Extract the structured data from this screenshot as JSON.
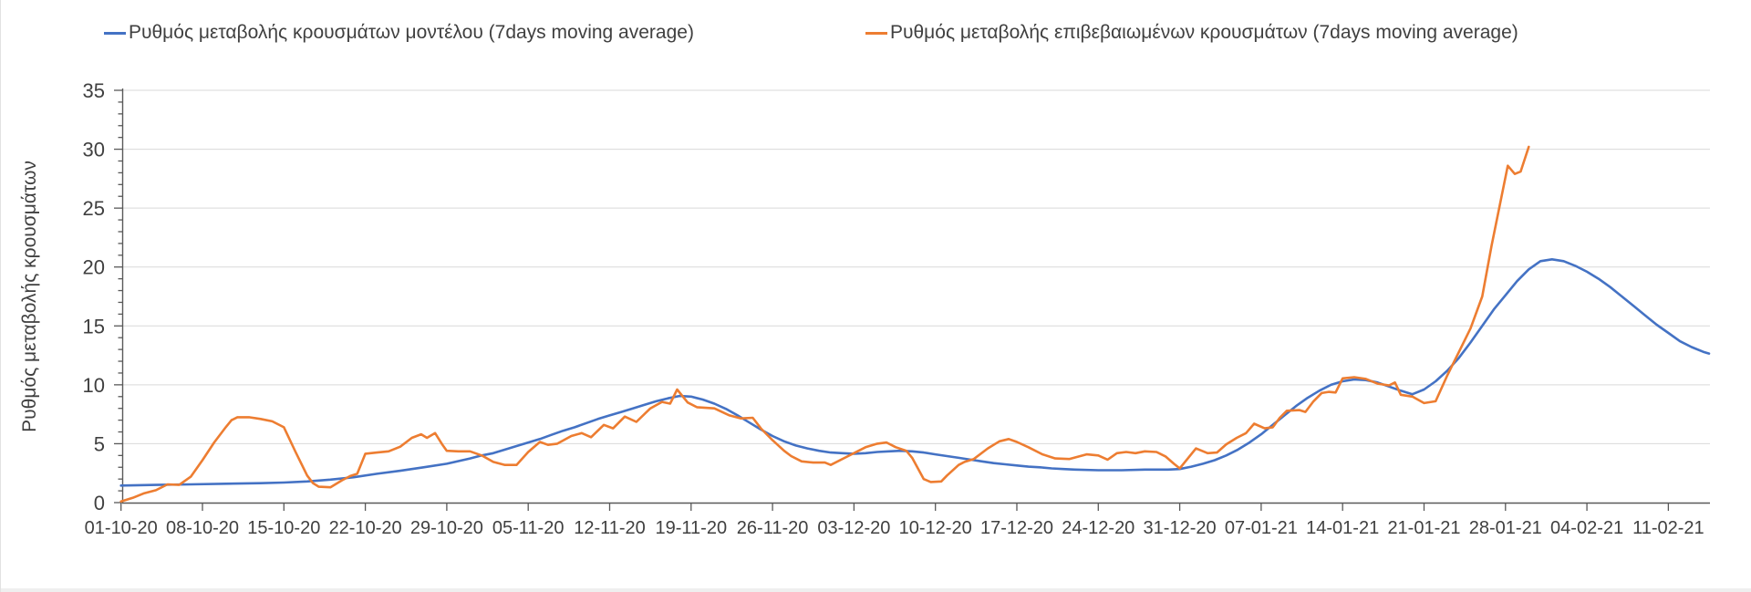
{
  "chart_data": {
    "type": "line",
    "title": "",
    "xlabel": "",
    "ylabel": "Ρυθμός μεταβολής κρουσμάτων",
    "ylim": [
      0,
      35
    ],
    "y_major_ticks": [
      0,
      5,
      10,
      15,
      20,
      25,
      30,
      35
    ],
    "y_minor_tick_step": 1,
    "grid": "horizontal-major",
    "legend_position": "top",
    "x_start_date": "01-10-20",
    "x_tick_interval_days": 7,
    "x_tick_labels": [
      "01-10-20",
      "08-10-20",
      "15-10-20",
      "22-10-20",
      "29-10-20",
      "05-11-20",
      "12-11-20",
      "19-11-20",
      "26-11-20",
      "03-12-20",
      "10-12-20",
      "17-12-20",
      "24-12-20",
      "31-12-20",
      "07-01-21",
      "14-01-21",
      "21-01-21",
      "28-01-21",
      "04-02-21",
      "11-02-21"
    ],
    "point_format": "[days_since_01-10-20, value]",
    "series": [
      {
        "name": "Ρυθμός μεταβολής κρουσμάτων μοντέλου (7days moving average)",
        "color": "#4472C4",
        "points": [
          [
            0,
            1.45
          ],
          [
            3,
            1.5
          ],
          [
            6,
            1.55
          ],
          [
            9,
            1.6
          ],
          [
            12,
            1.65
          ],
          [
            14,
            1.7
          ],
          [
            16,
            1.8
          ],
          [
            18,
            1.95
          ],
          [
            20,
            2.15
          ],
          [
            22,
            2.45
          ],
          [
            24,
            2.7
          ],
          [
            26,
            3.0
          ],
          [
            28,
            3.3
          ],
          [
            30,
            3.75
          ],
          [
            31,
            4.0
          ],
          [
            32,
            4.2
          ],
          [
            33,
            4.5
          ],
          [
            34,
            4.8
          ],
          [
            35,
            5.1
          ],
          [
            36,
            5.4
          ],
          [
            37,
            5.75
          ],
          [
            38,
            6.1
          ],
          [
            39,
            6.4
          ],
          [
            40,
            6.75
          ],
          [
            41,
            7.1
          ],
          [
            42,
            7.4
          ],
          [
            43,
            7.7
          ],
          [
            44,
            8.0
          ],
          [
            45,
            8.3
          ],
          [
            46,
            8.6
          ],
          [
            47,
            8.85
          ],
          [
            48,
            9.05
          ],
          [
            49,
            9.0
          ],
          [
            50,
            8.75
          ],
          [
            51,
            8.4
          ],
          [
            52,
            7.95
          ],
          [
            53,
            7.4
          ],
          [
            54,
            6.8
          ],
          [
            55,
            6.2
          ],
          [
            56,
            5.65
          ],
          [
            57,
            5.2
          ],
          [
            58,
            4.85
          ],
          [
            59,
            4.6
          ],
          [
            60,
            4.4
          ],
          [
            61,
            4.25
          ],
          [
            62,
            4.2
          ],
          [
            63,
            4.15
          ],
          [
            64,
            4.2
          ],
          [
            65,
            4.3
          ],
          [
            66,
            4.35
          ],
          [
            67,
            4.4
          ],
          [
            68,
            4.35
          ],
          [
            69,
            4.25
          ],
          [
            70,
            4.1
          ],
          [
            71,
            3.95
          ],
          [
            72,
            3.8
          ],
          [
            73,
            3.65
          ],
          [
            74,
            3.5
          ],
          [
            75,
            3.35
          ],
          [
            76,
            3.25
          ],
          [
            77,
            3.15
          ],
          [
            78,
            3.05
          ],
          [
            79,
            3.0
          ],
          [
            80,
            2.9
          ],
          [
            81,
            2.85
          ],
          [
            82,
            2.8
          ],
          [
            84,
            2.75
          ],
          [
            86,
            2.75
          ],
          [
            88,
            2.8
          ],
          [
            90,
            2.8
          ],
          [
            91,
            2.85
          ],
          [
            92,
            3.05
          ],
          [
            93,
            3.3
          ],
          [
            94,
            3.6
          ],
          [
            95,
            4.0
          ],
          [
            96,
            4.5
          ],
          [
            97,
            5.1
          ],
          [
            98,
            5.8
          ],
          [
            99,
            6.6
          ],
          [
            100,
            7.4
          ],
          [
            101,
            8.2
          ],
          [
            102,
            8.9
          ],
          [
            103,
            9.5
          ],
          [
            104,
            10.0
          ],
          [
            105,
            10.3
          ],
          [
            106,
            10.45
          ],
          [
            107,
            10.4
          ],
          [
            108,
            10.2
          ],
          [
            109,
            9.85
          ],
          [
            110,
            9.5
          ],
          [
            111,
            9.2
          ],
          [
            112,
            9.6
          ],
          [
            113,
            10.3
          ],
          [
            114,
            11.2
          ],
          [
            115,
            12.3
          ],
          [
            116,
            13.6
          ],
          [
            117,
            15.0
          ],
          [
            118,
            16.4
          ],
          [
            119,
            17.6
          ],
          [
            120,
            18.8
          ],
          [
            121,
            19.8
          ],
          [
            122,
            20.5
          ],
          [
            123,
            20.65
          ],
          [
            124,
            20.5
          ],
          [
            125,
            20.1
          ],
          [
            126,
            19.6
          ],
          [
            127,
            19.0
          ],
          [
            128,
            18.3
          ],
          [
            129,
            17.5
          ],
          [
            130,
            16.7
          ],
          [
            131,
            15.9
          ],
          [
            132,
            15.1
          ],
          [
            133,
            14.4
          ],
          [
            134,
            13.7
          ],
          [
            135,
            13.2
          ],
          [
            136,
            12.8
          ],
          [
            136.5,
            12.65
          ]
        ]
      },
      {
        "name": "Ρυθμός μεταβολής επιβεβαιωμένων κρουσμάτων (7days moving average)",
        "color": "#ED7D31",
        "points": [
          [
            0,
            0.1
          ],
          [
            1,
            0.4
          ],
          [
            2,
            0.8
          ],
          [
            3,
            1.05
          ],
          [
            4,
            1.55
          ],
          [
            5,
            1.5
          ],
          [
            6,
            2.2
          ],
          [
            7,
            3.6
          ],
          [
            8,
            5.1
          ],
          [
            9,
            6.4
          ],
          [
            9.5,
            7.0
          ],
          [
            10,
            7.25
          ],
          [
            11,
            7.25
          ],
          [
            12,
            7.1
          ],
          [
            13,
            6.9
          ],
          [
            14,
            6.4
          ],
          [
            15,
            4.3
          ],
          [
            16,
            2.3
          ],
          [
            16.5,
            1.65
          ],
          [
            17,
            1.35
          ],
          [
            18,
            1.3
          ],
          [
            19,
            1.9
          ],
          [
            19.7,
            2.25
          ],
          [
            20.3,
            2.45
          ],
          [
            21,
            4.15
          ],
          [
            22,
            4.25
          ],
          [
            23,
            4.35
          ],
          [
            24,
            4.75
          ],
          [
            25,
            5.5
          ],
          [
            25.8,
            5.8
          ],
          [
            26.3,
            5.5
          ],
          [
            27,
            5.9
          ],
          [
            27.6,
            4.95
          ],
          [
            28,
            4.4
          ],
          [
            29,
            4.35
          ],
          [
            30,
            4.35
          ],
          [
            31,
            4.0
          ],
          [
            32,
            3.45
          ],
          [
            33,
            3.2
          ],
          [
            34,
            3.2
          ],
          [
            35,
            4.3
          ],
          [
            36,
            5.15
          ],
          [
            36.7,
            4.9
          ],
          [
            37.5,
            5.0
          ],
          [
            38.7,
            5.65
          ],
          [
            39.6,
            5.9
          ],
          [
            40.4,
            5.55
          ],
          [
            41.5,
            6.6
          ],
          [
            42.3,
            6.3
          ],
          [
            43.3,
            7.3
          ],
          [
            44.3,
            6.85
          ],
          [
            45.5,
            8.0
          ],
          [
            46.5,
            8.55
          ],
          [
            47.2,
            8.4
          ],
          [
            47.8,
            9.6
          ],
          [
            48.7,
            8.5
          ],
          [
            49.5,
            8.1
          ],
          [
            51,
            8.0
          ],
          [
            52.3,
            7.4
          ],
          [
            53.3,
            7.15
          ],
          [
            54.3,
            7.2
          ],
          [
            55,
            6.3
          ],
          [
            56,
            5.3
          ],
          [
            57,
            4.4
          ],
          [
            57.6,
            3.95
          ],
          [
            58.5,
            3.5
          ],
          [
            59.5,
            3.4
          ],
          [
            60.5,
            3.4
          ],
          [
            61,
            3.2
          ],
          [
            62.5,
            3.95
          ],
          [
            63.3,
            4.35
          ],
          [
            64,
            4.7
          ],
          [
            65,
            5.0
          ],
          [
            65.8,
            5.1
          ],
          [
            66.6,
            4.7
          ],
          [
            67.5,
            4.4
          ],
          [
            68,
            3.8
          ],
          [
            69,
            2.0
          ],
          [
            69.6,
            1.75
          ],
          [
            70.5,
            1.8
          ],
          [
            71,
            2.3
          ],
          [
            72,
            3.2
          ],
          [
            72.5,
            3.45
          ],
          [
            73.3,
            3.7
          ],
          [
            74.5,
            4.6
          ],
          [
            75.5,
            5.2
          ],
          [
            76.3,
            5.4
          ],
          [
            77,
            5.15
          ],
          [
            78,
            4.7
          ],
          [
            79.2,
            4.1
          ],
          [
            80.3,
            3.75
          ],
          [
            81.5,
            3.7
          ],
          [
            83,
            4.1
          ],
          [
            84,
            4.0
          ],
          [
            84.8,
            3.65
          ],
          [
            85.6,
            4.2
          ],
          [
            86.4,
            4.3
          ],
          [
            87.2,
            4.2
          ],
          [
            88,
            4.35
          ],
          [
            89,
            4.3
          ],
          [
            89.8,
            3.9
          ],
          [
            90.5,
            3.3
          ],
          [
            91,
            2.9
          ],
          [
            92.4,
            4.6
          ],
          [
            93.4,
            4.2
          ],
          [
            94.2,
            4.25
          ],
          [
            95,
            4.95
          ],
          [
            95.9,
            5.5
          ],
          [
            96.7,
            5.9
          ],
          [
            97.4,
            6.7
          ],
          [
            98.3,
            6.3
          ],
          [
            99,
            6.4
          ],
          [
            99.6,
            7.2
          ],
          [
            100.2,
            7.8
          ],
          [
            101.3,
            7.85
          ],
          [
            101.8,
            7.7
          ],
          [
            102.5,
            8.6
          ],
          [
            103.2,
            9.3
          ],
          [
            103.8,
            9.4
          ],
          [
            104.4,
            9.35
          ],
          [
            105,
            10.55
          ],
          [
            106,
            10.65
          ],
          [
            107,
            10.5
          ],
          [
            108,
            10.1
          ],
          [
            109,
            9.95
          ],
          [
            109.5,
            10.2
          ],
          [
            110,
            9.15
          ],
          [
            111,
            9.0
          ],
          [
            112,
            8.45
          ],
          [
            113,
            8.6
          ],
          [
            114,
            10.8
          ],
          [
            115,
            12.8
          ],
          [
            116,
            14.8
          ],
          [
            117,
            17.5
          ],
          [
            117.8,
            21.8
          ],
          [
            118.5,
            25.2
          ],
          [
            119.2,
            28.6
          ],
          [
            119.8,
            27.9
          ],
          [
            120.3,
            28.1
          ],
          [
            121,
            30.2
          ]
        ]
      }
    ],
    "colors": {
      "model_line": "#4472C4",
      "confirmed_line": "#ED7D31",
      "gridline": "#D9D9D9",
      "axis_line": "#595959",
      "text": "#404040"
    }
  }
}
